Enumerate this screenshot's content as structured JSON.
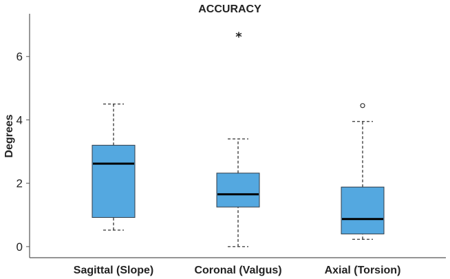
{
  "chart_data": {
    "type": "boxplot",
    "title": "ACCURACY",
    "xlabel": "",
    "ylabel": "Degrees",
    "ylim": [
      -0.35,
      7.35
    ],
    "yticks": [
      0,
      2,
      4,
      6
    ],
    "ytick_labels": [
      "0",
      "2",
      "4",
      "6"
    ],
    "categories": [
      "Sagittal (Slope)",
      "Coronal (Valgus)",
      "Axial (Torsion)"
    ],
    "grid": false,
    "colors": {
      "box_fill": "#54a8e0",
      "box_edge": "#2f3a45",
      "median": "#000000",
      "text": "#222222"
    },
    "boxes": [
      {
        "category": "Sagittal (Slope)",
        "whisker_low": 0.52,
        "q1": 0.92,
        "median": 2.62,
        "q3": 3.2,
        "whisker_high": 4.5,
        "outliers": []
      },
      {
        "category": "Coronal (Valgus)",
        "whisker_low": 0.0,
        "q1": 1.25,
        "median": 1.65,
        "q3": 2.32,
        "whisker_high": 3.4,
        "outliers": [
          {
            "value": 6.65,
            "marker": "*",
            "kind": "extreme"
          }
        ]
      },
      {
        "category": "Axial (Torsion)",
        "whisker_low": 0.23,
        "q1": 0.4,
        "median": 0.87,
        "q3": 1.88,
        "whisker_high": 3.95,
        "outliers": [
          {
            "value": 4.45,
            "marker": "o",
            "kind": "outlier"
          }
        ]
      }
    ]
  }
}
